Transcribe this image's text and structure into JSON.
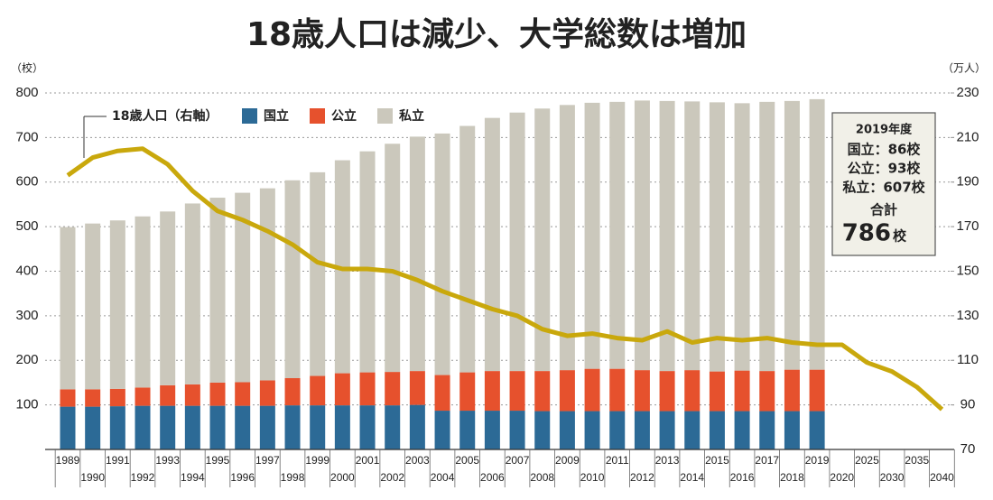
{
  "chart_data": {
    "type": "bar",
    "stacked": true,
    "title": "18歳人口は減少、大学総数は増加",
    "y_unit": "（校）",
    "y2_unit": "（万人）",
    "categories": [
      "1989",
      "1990",
      "1991",
      "1992",
      "1993",
      "1994",
      "1995",
      "1996",
      "1997",
      "1998",
      "1999",
      "2000",
      "2001",
      "2002",
      "2003",
      "2004",
      "2005",
      "2006",
      "2007",
      "2008",
      "2009",
      "2010",
      "2011",
      "2012",
      "2013",
      "2014",
      "2015",
      "2016",
      "2017",
      "2018",
      "2019",
      "2020",
      "2025",
      "2030",
      "2035",
      "2040"
    ],
    "series": [
      {
        "name": "国立",
        "type": "bar",
        "color": "#2c6a96",
        "values": [
          96,
          96,
          97,
          98,
          98,
          98,
          98,
          98,
          98,
          99,
          99,
          99,
          99,
          99,
          100,
          87,
          87,
          87,
          87,
          86,
          86,
          86,
          86,
          86,
          86,
          86,
          86,
          86,
          86,
          86,
          86,
          null,
          null,
          null,
          null,
          null
        ]
      },
      {
        "name": "公立",
        "type": "bar",
        "color": "#e6512d",
        "values": [
          39,
          39,
          39,
          41,
          46,
          48,
          52,
          53,
          57,
          61,
          66,
          72,
          74,
          75,
          76,
          80,
          86,
          89,
          89,
          90,
          92,
          95,
          95,
          92,
          90,
          92,
          89,
          91,
          90,
          93,
          93,
          null,
          null,
          null,
          null,
          null
        ]
      },
      {
        "name": "私立",
        "type": "bar",
        "color": "#cbc8bc",
        "values": [
          364,
          372,
          378,
          384,
          390,
          406,
          415,
          425,
          431,
          444,
          457,
          478,
          496,
          512,
          526,
          542,
          553,
          568,
          580,
          589,
          595,
          597,
          599,
          605,
          606,
          603,
          604,
          600,
          604,
          603,
          607,
          null,
          null,
          null,
          null,
          null
        ]
      },
      {
        "name": "18歳人口（右軸）",
        "type": "line",
        "axis": "y2",
        "color": "#c9a80c",
        "values": [
          193,
          201,
          204,
          205,
          198,
          186,
          177,
          173,
          168,
          162,
          154,
          151,
          151,
          150,
          146,
          141,
          137,
          133,
          130,
          124,
          121,
          122,
          120,
          119,
          123,
          118,
          120,
          119,
          120,
          118,
          117,
          117,
          109,
          105,
          98,
          88
        ]
      }
    ],
    "ylim": [
      0,
      800
    ],
    "yticks": [
      100,
      200,
      300,
      400,
      500,
      600,
      700,
      800
    ],
    "y2lim": [
      70,
      230
    ],
    "y2ticks": [
      70,
      90,
      110,
      130,
      150,
      170,
      190,
      210,
      230
    ],
    "grid": true,
    "annotations": [
      "2019年度",
      "国立：86校",
      "公立：93校",
      "私立：607校",
      "合計",
      "786",
      "校"
    ]
  }
}
